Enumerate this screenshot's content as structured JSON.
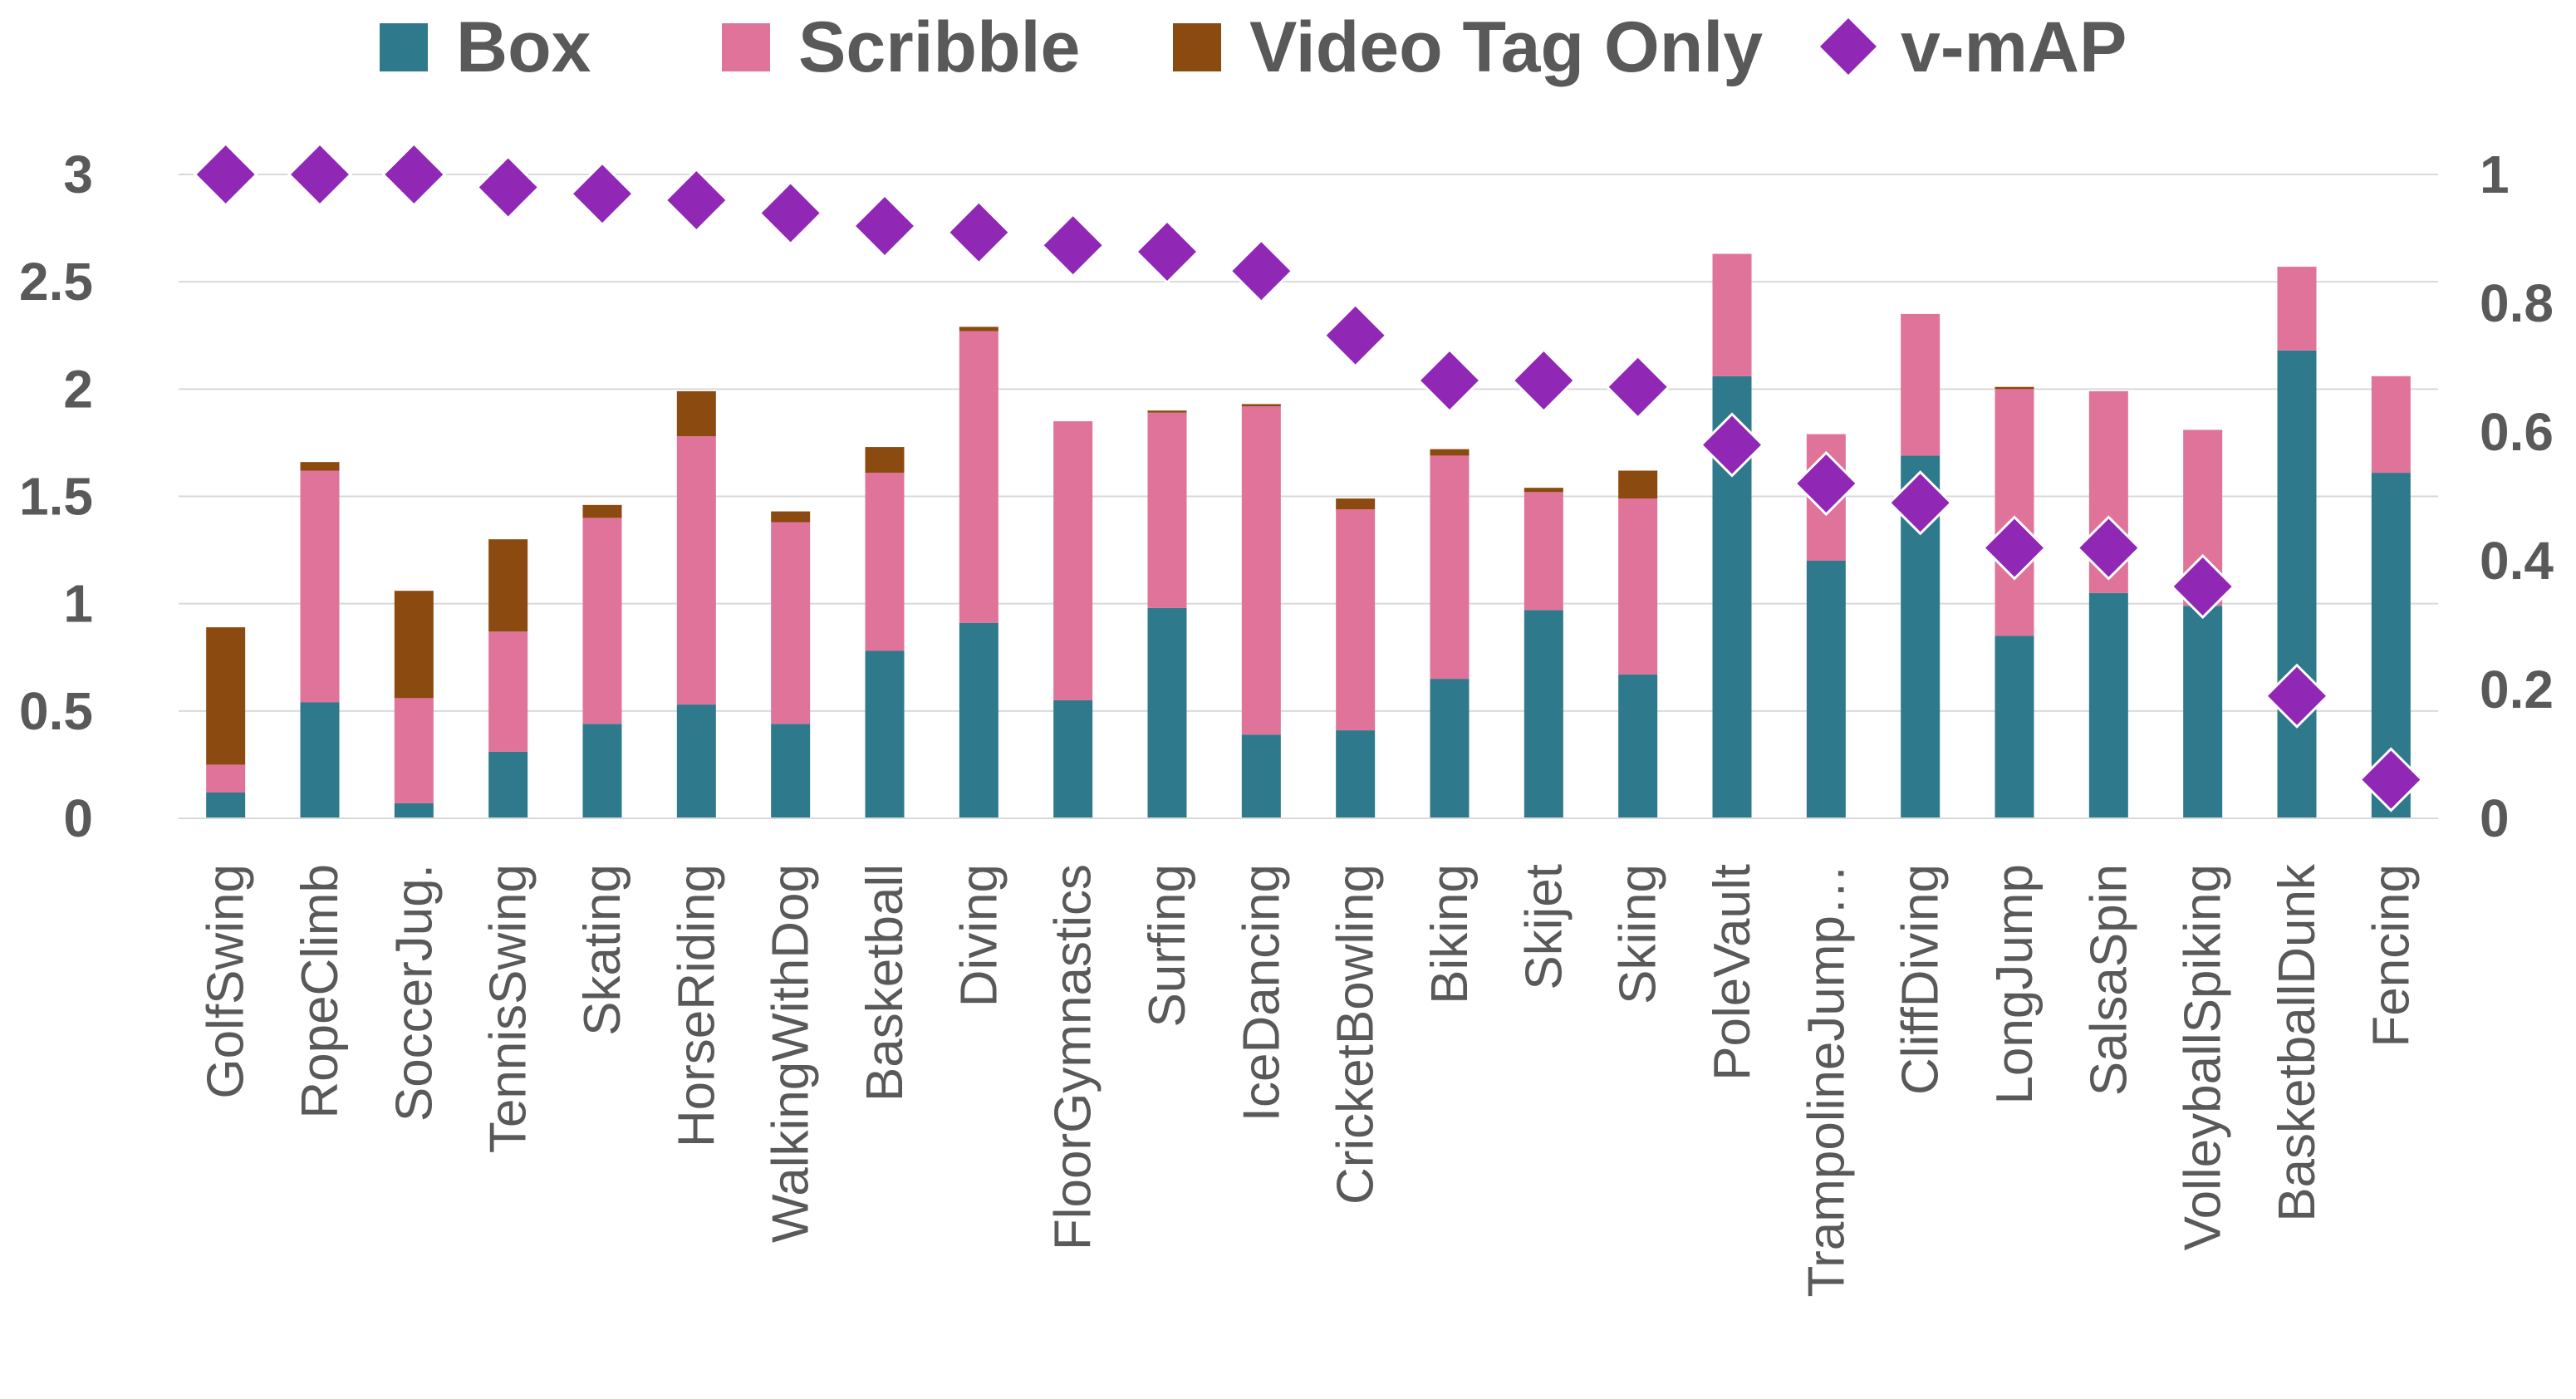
{
  "chart_data": {
    "type": "bar",
    "stacked": true,
    "categories": [
      "GolfSwing",
      "RopeClimb",
      "SoccerJug.",
      "TennisSwing",
      "Skating",
      "HorseRiding",
      "WalkingWithDog",
      "Basketball",
      "Diving",
      "FloorGymnastics",
      "Surfing",
      "IceDancing",
      "CricketBowling",
      "Biking",
      "Skijet",
      "Skiing",
      "PoleVault",
      "TrampolineJump…",
      "CliffDiving",
      "LongJump",
      "SalsaSpin",
      "VolleyballSpiking",
      "BasketballDunk",
      "Fencing"
    ],
    "series": [
      {
        "name": "Box",
        "color": "#2e7a8c",
        "axis": "left",
        "marker": "bar",
        "values": [
          0.12,
          0.54,
          0.07,
          0.31,
          0.44,
          0.53,
          0.44,
          0.78,
          0.91,
          0.55,
          0.98,
          0.39,
          0.41,
          0.65,
          0.97,
          0.67,
          2.06,
          1.2,
          1.69,
          0.85,
          1.05,
          0.99,
          2.18,
          1.61
        ]
      },
      {
        "name": "Scribble",
        "color": "#e07399",
        "axis": "left",
        "marker": "bar",
        "values": [
          0.13,
          1.08,
          0.49,
          0.56,
          0.96,
          1.25,
          0.94,
          0.83,
          1.36,
          1.3,
          0.91,
          1.53,
          1.03,
          1.04,
          0.55,
          0.82,
          0.57,
          0.59,
          0.66,
          1.15,
          0.94,
          0.82,
          0.39,
          0.45
        ]
      },
      {
        "name": "Video Tag Only",
        "color": "#8a4a10",
        "axis": "left",
        "marker": "bar",
        "values": [
          0.64,
          0.04,
          0.5,
          0.43,
          0.06,
          0.21,
          0.05,
          0.12,
          0.02,
          0.0,
          0.01,
          0.01,
          0.05,
          0.03,
          0.02,
          0.13,
          0.0,
          0.0,
          0.0,
          0.01,
          0.0,
          0.0,
          0.0,
          0.0
        ]
      },
      {
        "name": "v-mAP",
        "color": "#9127b5",
        "axis": "right",
        "marker": "diamond",
        "values": [
          1.0,
          1.0,
          1.0,
          0.98,
          0.97,
          0.96,
          0.94,
          0.92,
          0.91,
          0.89,
          0.88,
          0.85,
          0.75,
          0.68,
          0.68,
          0.67,
          0.58,
          0.52,
          0.49,
          0.42,
          0.42,
          0.36,
          0.19,
          0.06
        ]
      }
    ],
    "y_left": {
      "min": 0,
      "max": 3,
      "ticks": [
        "0",
        "0.5",
        "1",
        "1.5",
        "2",
        "2.5",
        "3"
      ]
    },
    "y_right": {
      "min": 0,
      "max": 1,
      "ticks": [
        "0",
        "0.2",
        "0.4",
        "0.6",
        "0.8",
        "1"
      ]
    },
    "grid": true,
    "legend_position": "top",
    "gridline_color": "#d9d9d9",
    "axis_text_color": "#595959"
  }
}
